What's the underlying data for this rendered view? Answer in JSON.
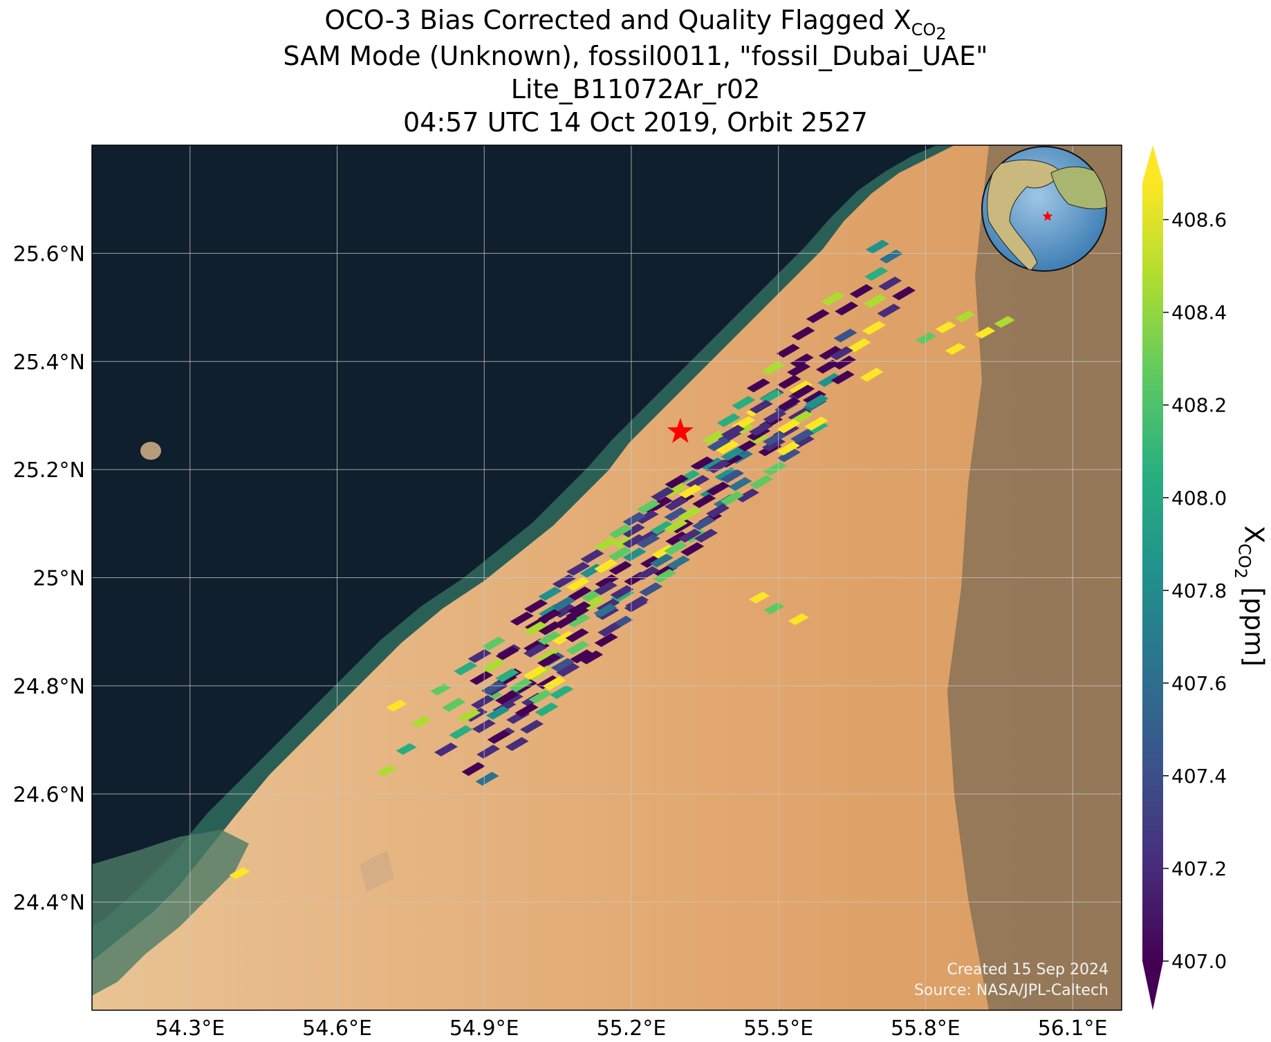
{
  "title": {
    "line1_prefix": "OCO-3 Bias Corrected and Quality Flagged X",
    "line1_sub": "CO",
    "line1_sub2": "2",
    "line2": "SAM Mode (Unknown), fossil0011, \"fossil_Dubai_UAE\"",
    "line3": "Lite_B11072Ar_r02",
    "line4": "04:57 UTC 14 Oct 2019, Orbit 2527"
  },
  "map": {
    "lon_range": [
      54.1,
      56.2
    ],
    "lat_range": [
      24.2,
      25.8
    ],
    "lon_ticks": [
      54.3,
      54.6,
      54.9,
      55.2,
      55.5,
      55.8,
      56.1
    ],
    "lon_tick_labels": [
      "54.3°E",
      "54.6°E",
      "54.9°E",
      "55.2°E",
      "55.5°E",
      "55.8°E",
      "56.1°E"
    ],
    "lat_ticks": [
      24.4,
      24.6,
      24.8,
      25.0,
      25.2,
      25.4,
      25.6
    ],
    "lat_tick_labels": [
      "24.4°N",
      "24.6°N",
      "24.8°N",
      "25°N",
      "25.2°N",
      "25.4°N",
      "25.6°N"
    ],
    "target_marker": {
      "lon": 55.3,
      "lat": 25.27,
      "color": "#ff0000"
    },
    "colors": {
      "sea": "#0f1f2d",
      "desert": "#e7b57f",
      "coast_shallow": "#2f6b5e",
      "mountains": "#8d7458",
      "grid": "#c8c8c8"
    }
  },
  "colorbar": {
    "ticks": [
      407.0,
      407.2,
      407.4,
      407.6,
      407.8,
      408.0,
      408.2,
      408.4,
      408.6
    ],
    "tick_labels": [
      "407.0",
      "407.2",
      "407.4",
      "407.6",
      "407.8",
      "408.0",
      "408.2",
      "408.4",
      "408.6"
    ],
    "vmin": 407.0,
    "vmax": 408.6,
    "colormap": "viridis",
    "extend": "both",
    "label_prefix": "X",
    "label_sub": "CO",
    "label_sub2": "2",
    "label_suffix": " [ppm]"
  },
  "credits": {
    "created": "Created 15 Sep 2024",
    "source": "Source: NASA/JPL-Caltech"
  }
}
